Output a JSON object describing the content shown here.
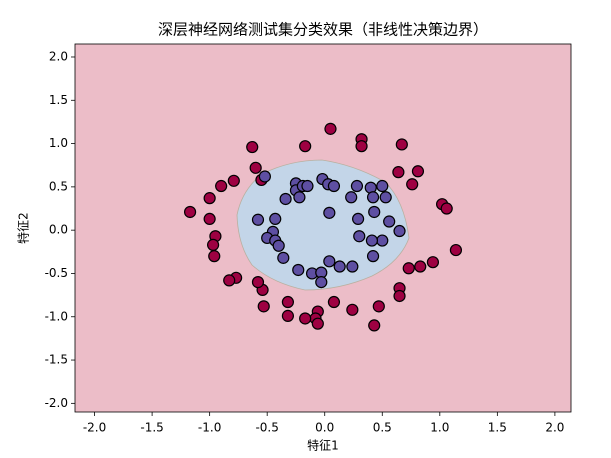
{
  "chart_data": {
    "type": "scatter",
    "title": "深层神经网络测试集分类效果（非线性决策边界）",
    "x_label": "特征1",
    "y_label": "特征2",
    "xlim": [
      -2.17,
      2.14
    ],
    "ylim": [
      -2.1,
      2.15
    ],
    "xticks": [
      {
        "value": -2,
        "label": "-2.0"
      },
      -1.5,
      {
        "value": -1,
        "label": "-1.0"
      },
      -0.5,
      {
        "value": 0,
        "label": "0.0"
      },
      0.5,
      {
        "value": 1,
        "label": "1.0"
      },
      1.5,
      {
        "value": 2,
        "label": "2.0"
      }
    ],
    "yticks": [
      {
        "value": -2,
        "label": "-2.0"
      },
      -1.5,
      {
        "value": -1,
        "label": "-1.0"
      },
      -0.5,
      {
        "value": 0,
        "label": "0.0"
      },
      0.5,
      {
        "value": 1,
        "label": "1.0"
      },
      1.5,
      {
        "value": 2,
        "label": "2.0"
      }
    ],
    "series": [
      {
        "color": "#9e0142",
        "x": [
          -1.17,
          -1.0,
          -0.9,
          -0.79,
          -0.63,
          -0.6,
          -0.55,
          -0.17,
          0.05,
          0.32,
          0.32,
          0.67,
          0.64,
          0.76,
          0.81,
          1.02,
          1.06,
          1.14,
          0.94,
          0.83,
          0.73,
          0.65,
          0.65,
          0.47,
          0.24,
          0.08,
          -0.06,
          -0.08,
          -0.06,
          -0.17,
          -0.32,
          -0.32,
          -0.53,
          -0.54,
          -0.77,
          -0.83,
          -0.96,
          -1.0,
          -0.95,
          -0.97,
          0.43,
          -0.58
        ],
        "values": [
          0.21,
          0.37,
          0.51,
          0.57,
          0.96,
          0.72,
          0.58,
          0.97,
          1.17,
          1.05,
          0.97,
          0.99,
          0.67,
          0.53,
          0.68,
          0.3,
          0.25,
          -0.23,
          -0.37,
          -0.42,
          -0.44,
          -0.67,
          -0.76,
          -0.88,
          -0.92,
          -0.83,
          -0.94,
          -1.02,
          -1.08,
          -1.02,
          -0.99,
          -0.83,
          -0.88,
          -0.69,
          -0.55,
          -0.58,
          -0.3,
          0.13,
          -0.07,
          -0.17,
          -1.1,
          -0.6
        ]
      },
      {
        "color": "#5e4fa2",
        "x": [
          -0.52,
          -0.58,
          -0.43,
          -0.34,
          -0.25,
          -0.25,
          -0.22,
          -0.19,
          -0.15,
          -0.02,
          0.03,
          0.08,
          0.28,
          0.4,
          0.5,
          0.53,
          0.42,
          0.23,
          0.29,
          0.43,
          0.56,
          0.65,
          0.5,
          0.41,
          0.3,
          -0.45,
          -0.5,
          -0.43,
          -0.4,
          -0.36,
          -0.23,
          -0.11,
          -0.03,
          -0.03,
          0.13,
          0.24,
          0.42,
          0.04,
          0.04
        ],
        "values": [
          0.62,
          0.12,
          0.13,
          0.36,
          0.54,
          0.46,
          0.38,
          0.51,
          0.51,
          0.59,
          0.53,
          0.51,
          0.51,
          0.49,
          0.51,
          0.38,
          0.38,
          0.38,
          0.13,
          0.21,
          0.1,
          -0.01,
          -0.12,
          -0.12,
          -0.07,
          -0.02,
          -0.09,
          -0.12,
          -0.18,
          -0.32,
          -0.46,
          -0.5,
          -0.49,
          -0.6,
          -0.42,
          -0.42,
          -0.3,
          -0.36,
          0.2
        ]
      }
    ]
  }
}
